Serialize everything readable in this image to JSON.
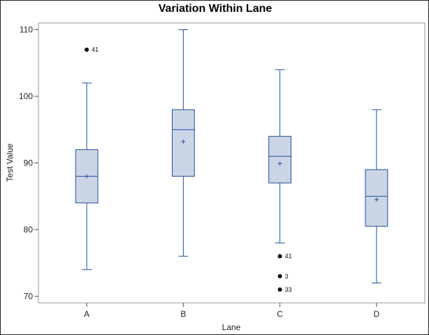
{
  "chart_data": {
    "type": "boxplot",
    "title": "Variation Within Lane",
    "xlabel": "Lane",
    "ylabel": "Test Value",
    "ylim": [
      69,
      111
    ],
    "yticks": [
      70,
      80,
      90,
      100,
      110
    ],
    "grid": false,
    "categories": [
      "A",
      "B",
      "C",
      "D"
    ],
    "boxes": [
      {
        "category": "A",
        "whisker_low": 74,
        "q1": 84,
        "median": 88,
        "mean": 88,
        "q3": 92,
        "whisker_high": 102,
        "outliers": [
          {
            "value": 107,
            "label": "41"
          }
        ]
      },
      {
        "category": "B",
        "whisker_low": 76,
        "q1": 88,
        "median": 95,
        "mean": 93.2,
        "q3": 98,
        "whisker_high": 110,
        "outliers": []
      },
      {
        "category": "C",
        "whisker_low": 78,
        "q1": 87,
        "median": 91,
        "mean": 89.9,
        "q3": 94,
        "whisker_high": 104,
        "outliers": [
          {
            "value": 76,
            "label": "41"
          },
          {
            "value": 73,
            "label": "3"
          },
          {
            "value": 71,
            "label": "33"
          }
        ]
      },
      {
        "category": "D",
        "whisker_low": 72,
        "q1": 80.5,
        "median": 85,
        "mean": 84.5,
        "q3": 89,
        "whisker_high": 98,
        "outliers": []
      }
    ],
    "colors": {
      "box_fill": "#cbd5e6",
      "box_stroke": "#1f4e9c",
      "outlier": "#000000",
      "frame": "#999999"
    }
  }
}
